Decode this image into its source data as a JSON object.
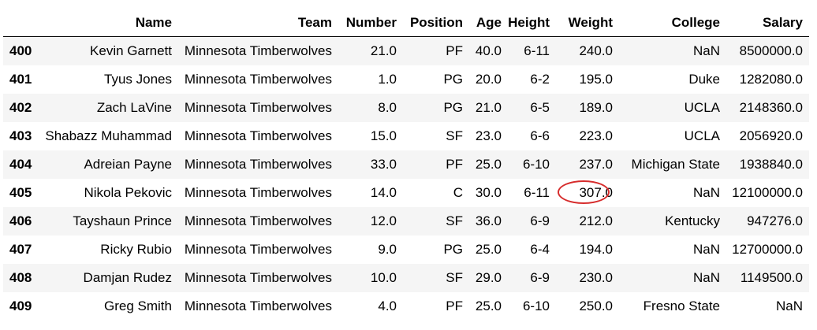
{
  "table": {
    "columns": [
      "Name",
      "Team",
      "Number",
      "Position",
      "Age",
      "Height",
      "Weight",
      "College",
      "Salary"
    ],
    "rows": [
      {
        "index": "400",
        "cells": [
          "Kevin Garnett",
          "Minnesota Timberwolves",
          "21.0",
          "PF",
          "40.0",
          "6-11",
          "240.0",
          "NaN",
          "8500000.0"
        ]
      },
      {
        "index": "401",
        "cells": [
          "Tyus Jones",
          "Minnesota Timberwolves",
          "1.0",
          "PG",
          "20.0",
          "6-2",
          "195.0",
          "Duke",
          "1282080.0"
        ]
      },
      {
        "index": "402",
        "cells": [
          "Zach LaVine",
          "Minnesota Timberwolves",
          "8.0",
          "PG",
          "21.0",
          "6-5",
          "189.0",
          "UCLA",
          "2148360.0"
        ]
      },
      {
        "index": "403",
        "cells": [
          "Shabazz Muhammad",
          "Minnesota Timberwolves",
          "15.0",
          "SF",
          "23.0",
          "6-6",
          "223.0",
          "UCLA",
          "2056920.0"
        ]
      },
      {
        "index": "404",
        "cells": [
          "Adreian Payne",
          "Minnesota Timberwolves",
          "33.0",
          "PF",
          "25.0",
          "6-10",
          "237.0",
          "Michigan State",
          "1938840.0"
        ]
      },
      {
        "index": "405",
        "cells": [
          "Nikola Pekovic",
          "Minnesota Timberwolves",
          "14.0",
          "C",
          "30.0",
          "6-11",
          "307.0",
          "NaN",
          "12100000.0"
        ]
      },
      {
        "index": "406",
        "cells": [
          "Tayshaun Prince",
          "Minnesota Timberwolves",
          "12.0",
          "SF",
          "36.0",
          "6-9",
          "212.0",
          "Kentucky",
          "947276.0"
        ]
      },
      {
        "index": "407",
        "cells": [
          "Ricky Rubio",
          "Minnesota Timberwolves",
          "9.0",
          "PG",
          "25.0",
          "6-4",
          "194.0",
          "NaN",
          "12700000.0"
        ]
      },
      {
        "index": "408",
        "cells": [
          "Damjan Rudez",
          "Minnesota Timberwolves",
          "10.0",
          "SF",
          "29.0",
          "6-9",
          "230.0",
          "NaN",
          "1149500.0"
        ]
      },
      {
        "index": "409",
        "cells": [
          "Greg Smith",
          "Minnesota Timberwolves",
          "4.0",
          "PF",
          "25.0",
          "6-10",
          "250.0",
          "Fresno State",
          "NaN"
        ]
      }
    ]
  },
  "highlight": {
    "row": "405",
    "column": "Weight",
    "color": "#d62c2c"
  }
}
